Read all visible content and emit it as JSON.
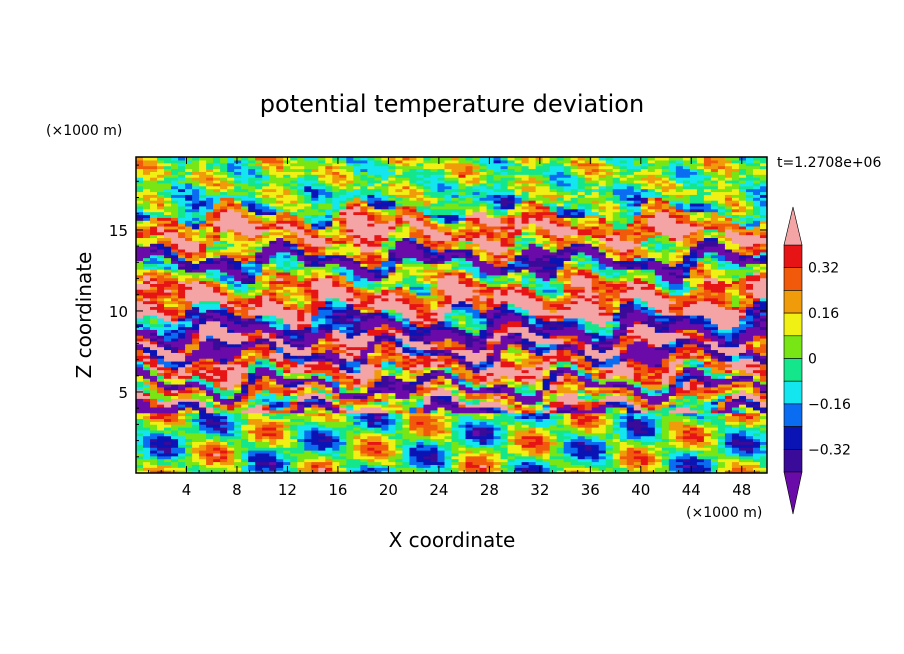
{
  "chart_data": {
    "type": "heatmap",
    "title": "potential temperature deviation",
    "xlabel": "X coordinate",
    "ylabel": "Z coordinate",
    "x_unit": "(×1000 m)",
    "y_unit": "(×1000 m)",
    "time_label": "t=1.2708e+06",
    "xlim": [
      0,
      50
    ],
    "ylim": [
      0,
      19.5
    ],
    "x_ticks": [
      4,
      8,
      12,
      16,
      20,
      24,
      28,
      32,
      36,
      40,
      44,
      48
    ],
    "y_ticks": [
      5,
      10,
      15
    ],
    "colorbar": {
      "levels": [
        -0.4,
        -0.32,
        -0.24,
        -0.16,
        -0.08,
        0,
        0.08,
        0.16,
        0.24,
        0.32,
        0.4
      ],
      "labels": [
        "0.32",
        "0.16",
        "0",
        "−0.16",
        "−0.32"
      ],
      "label_values": [
        0.32,
        0.16,
        0,
        -0.16,
        -0.32
      ],
      "colors": [
        "#6a0aa8",
        "#3a0a98",
        "#0a14b4",
        "#0a6cf0",
        "#14e6f0",
        "#14e68c",
        "#78e614",
        "#f0f014",
        "#f09c0a",
        "#f05a0a",
        "#e61414",
        "#f4a4a4"
      ],
      "extend": "both"
    },
    "bands": [
      {
        "z": 19.2,
        "value": 0.03
      },
      {
        "z": 18.2,
        "value": 0.05
      },
      {
        "z": 17.3,
        "value": 0.0
      },
      {
        "z": 16.5,
        "value": -0.1
      },
      {
        "z": 15.6,
        "value": 0.28
      },
      {
        "z": 14.9,
        "value": 0.42
      },
      {
        "z": 14.0,
        "value": 0.12
      },
      {
        "z": 13.2,
        "value": -0.38
      },
      {
        "z": 12.2,
        "value": 0.06
      },
      {
        "z": 11.2,
        "value": 0.3
      },
      {
        "z": 10.3,
        "value": 0.42
      },
      {
        "z": 9.4,
        "value": -0.2
      },
      {
        "z": 8.8,
        "value": -0.42
      },
      {
        "z": 8.1,
        "value": 0.42
      },
      {
        "z": 7.4,
        "value": -0.42
      },
      {
        "z": 6.9,
        "value": 0.3
      },
      {
        "z": 6.3,
        "value": 0.42
      },
      {
        "z": 5.9,
        "value": 0.1
      },
      {
        "z": 5.4,
        "value": -0.42
      },
      {
        "z": 4.9,
        "value": 0.24
      },
      {
        "z": 4.4,
        "value": -0.02
      },
      {
        "z": 4.1,
        "value": 0.42
      },
      {
        "z": 3.6,
        "value": -0.45
      },
      {
        "z": 2.9,
        "value": 0.05
      },
      {
        "z": 2.0,
        "value": -0.12
      },
      {
        "z": 1.1,
        "value": 0.08
      },
      {
        "z": 0.3,
        "value": 0.03
      }
    ],
    "grid": false,
    "legend": "right"
  }
}
